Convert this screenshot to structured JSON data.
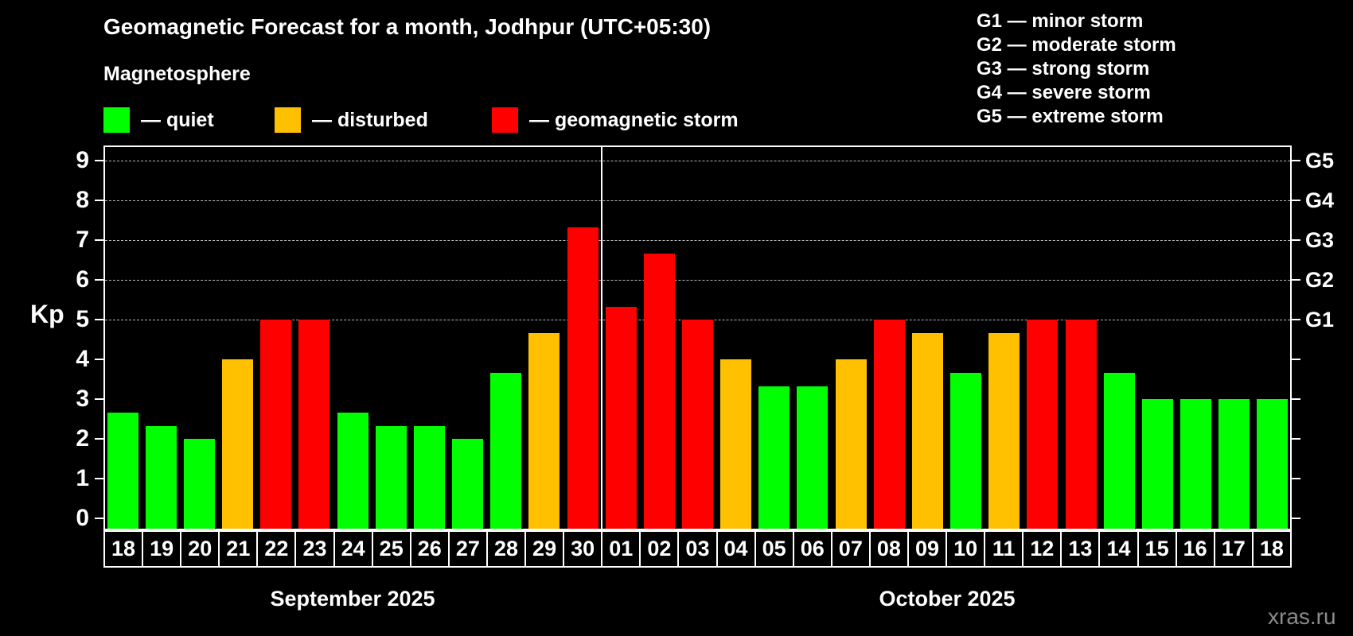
{
  "title": "Geomagnetic Forecast for a month, Jodhpur (UTC+05:30)",
  "subtitle": "Magnetosphere",
  "legend": {
    "items": [
      {
        "label": "— quiet",
        "status": "quiet",
        "color": "#00ff00"
      },
      {
        "label": "— disturbed",
        "status": "disturbed",
        "color": "#ffc000"
      },
      {
        "label": "— geomagnetic storm",
        "status": "storm",
        "color": "#ff0000"
      }
    ]
  },
  "g_scale_legend": [
    "G1 — minor storm",
    "G2 — moderate storm",
    "G3 — strong storm",
    "G4 — severe storm",
    "G5 — extreme storm"
  ],
  "watermark": "xras.ru",
  "chart_data": {
    "type": "bar",
    "title": "Geomagnetic Forecast for a month, Jodhpur (UTC+05:30)",
    "subtitle": "Magnetosphere",
    "ylabel": "Kp",
    "ylim": [
      0,
      9.4
    ],
    "yticks": [
      0,
      1,
      2,
      3,
      4,
      5,
      6,
      7,
      8,
      9
    ],
    "gridlines_at": [
      5,
      6,
      7,
      8,
      9
    ],
    "grid": "dashed horizontal at storm levels only",
    "legend_position": "top-left",
    "right_axis": [
      {
        "kp": 5,
        "label": "G1"
      },
      {
        "kp": 6,
        "label": "G2"
      },
      {
        "kp": 7,
        "label": "G3"
      },
      {
        "kp": 8,
        "label": "G4"
      },
      {
        "kp": 9,
        "label": "G5"
      }
    ],
    "colors": {
      "quiet": "#00ff00",
      "disturbed": "#ffc000",
      "storm": "#ff0000"
    },
    "months": [
      {
        "label": "September 2025",
        "start_index": 0,
        "count": 13
      },
      {
        "label": "October 2025",
        "start_index": 13,
        "count": 18
      }
    ],
    "bars": [
      {
        "day": "18",
        "kp": 2.67,
        "status": "quiet"
      },
      {
        "day": "19",
        "kp": 2.33,
        "status": "quiet"
      },
      {
        "day": "20",
        "kp": 2.0,
        "status": "quiet"
      },
      {
        "day": "21",
        "kp": 4.0,
        "status": "disturbed"
      },
      {
        "day": "22",
        "kp": 5.0,
        "status": "storm"
      },
      {
        "day": "23",
        "kp": 5.0,
        "status": "storm"
      },
      {
        "day": "24",
        "kp": 2.67,
        "status": "quiet"
      },
      {
        "day": "25",
        "kp": 2.33,
        "status": "quiet"
      },
      {
        "day": "26",
        "kp": 2.33,
        "status": "quiet"
      },
      {
        "day": "27",
        "kp": 2.0,
        "status": "quiet"
      },
      {
        "day": "28",
        "kp": 3.67,
        "status": "quiet"
      },
      {
        "day": "29",
        "kp": 4.67,
        "status": "disturbed"
      },
      {
        "day": "30",
        "kp": 7.33,
        "status": "storm"
      },
      {
        "day": "01",
        "kp": 5.33,
        "status": "storm"
      },
      {
        "day": "02",
        "kp": 6.67,
        "status": "storm"
      },
      {
        "day": "03",
        "kp": 5.0,
        "status": "storm"
      },
      {
        "day": "04",
        "kp": 4.0,
        "status": "disturbed"
      },
      {
        "day": "05",
        "kp": 3.33,
        "status": "quiet"
      },
      {
        "day": "06",
        "kp": 3.33,
        "status": "quiet"
      },
      {
        "day": "07",
        "kp": 4.0,
        "status": "disturbed"
      },
      {
        "day": "08",
        "kp": 5.0,
        "status": "storm"
      },
      {
        "day": "09",
        "kp": 4.67,
        "status": "disturbed"
      },
      {
        "day": "10",
        "kp": 3.67,
        "status": "quiet"
      },
      {
        "day": "11",
        "kp": 4.67,
        "status": "disturbed"
      },
      {
        "day": "12",
        "kp": 5.0,
        "status": "storm"
      },
      {
        "day": "13",
        "kp": 5.0,
        "status": "storm"
      },
      {
        "day": "14",
        "kp": 3.67,
        "status": "quiet"
      },
      {
        "day": "15",
        "kp": 3.0,
        "status": "quiet"
      },
      {
        "day": "16",
        "kp": 3.0,
        "status": "quiet"
      },
      {
        "day": "17",
        "kp": 3.0,
        "status": "quiet"
      },
      {
        "day": "18",
        "kp": 3.0,
        "status": "quiet"
      }
    ]
  }
}
